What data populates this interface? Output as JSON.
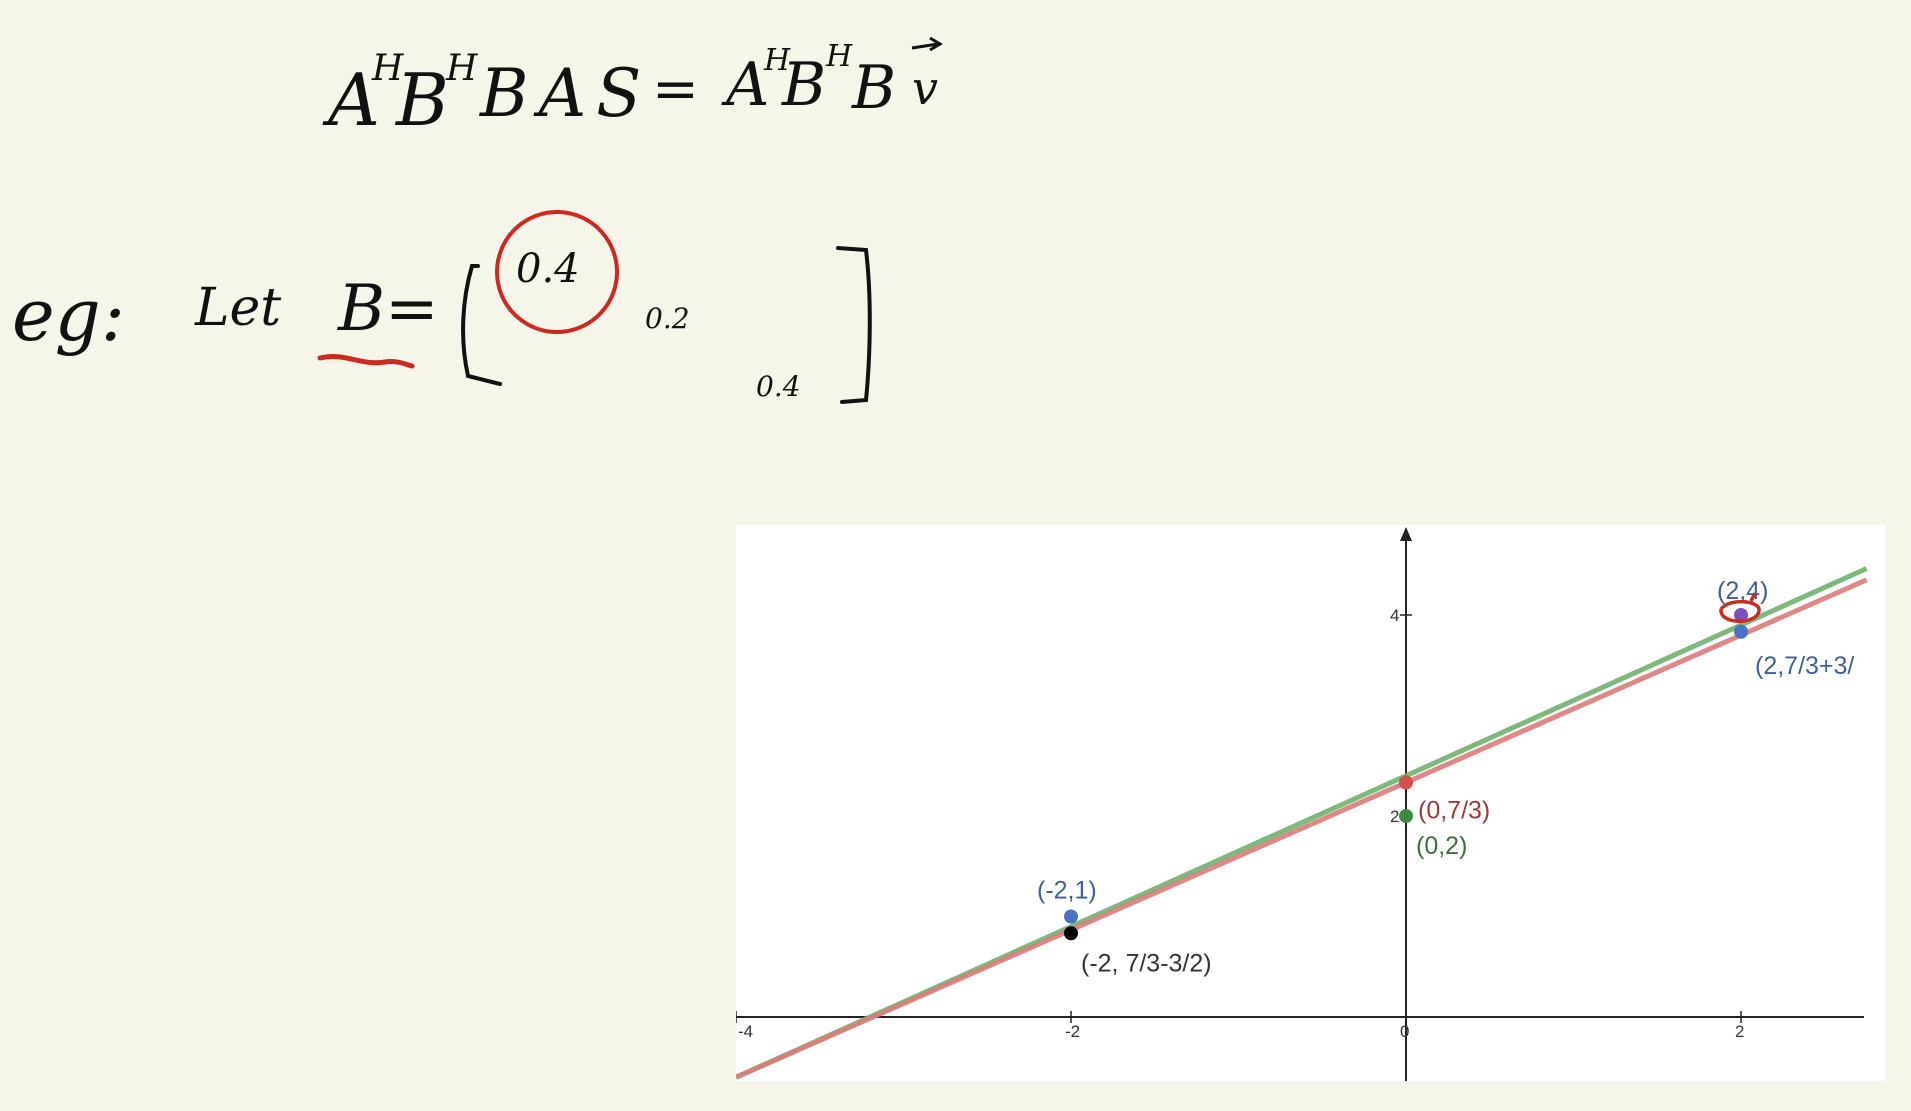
{
  "handwriting": {
    "equation_lhs": "A",
    "equation_lhs_sup1": "H",
    "equation_lhs_mid": "B",
    "equation_lhs_sup2": "H",
    "equation_lhs_tail": "BAS",
    "equals": "=",
    "equation_rhs": "A",
    "equation_rhs_sup1": "H",
    "equation_rhs_mid": "B",
    "equation_rhs_sup2": "H",
    "equation_rhs_tail": "B",
    "equation_rhs_vec": "v",
    "example_prefix": "eg:",
    "let_word": "Let",
    "matrix_name": "B=",
    "entry_11": "0.4",
    "entry_12": "0.2",
    "entry_22": "0.4"
  },
  "colors": {
    "ink": "#111111",
    "annotation_red": "#cc2a1e",
    "green_line": "#6fb06f",
    "red_line": "#dc7b7b",
    "blue_point": "#4b72c4",
    "green_point": "#3f8a3f",
    "red_point": "#d64f4f",
    "black_point": "#000000",
    "purple_point": "#7b4fbf",
    "blue_label": "#3f5f9c",
    "green_label": "#3f6f3f",
    "red_label": "#9a3a3a",
    "black_label": "#333333"
  },
  "chart_data": {
    "type": "scatter",
    "xlim": [
      -4,
      2.75
    ],
    "ylim": [
      -0.4,
      4.9
    ],
    "x_ticks": [
      -4,
      -2,
      0,
      2
    ],
    "x_tick_labels": [
      "-4",
      "-2",
      "0",
      "2"
    ],
    "y_ticks": [
      2,
      4
    ],
    "y_tick_labels": [
      "2",
      "4"
    ],
    "grid": false,
    "lines": [
      {
        "color_key": "green_line",
        "slope": 0.75,
        "intercept": 2.4
      },
      {
        "color_key": "red_line",
        "slope": 0.7333,
        "intercept": 2.3333
      }
    ],
    "points": [
      {
        "x": -2,
        "y": 1,
        "color_key": "blue_point",
        "label": "(-2,1)",
        "label_color_key": "blue_label"
      },
      {
        "x": -2,
        "y": 0.8333,
        "color_key": "black_point",
        "label": "(-2, 7/3-3/2)",
        "label_color_key": "black_label"
      },
      {
        "x": 0,
        "y": 2.3333,
        "color_key": "red_point",
        "label": "(0,7/3)",
        "label_color_key": "red_label"
      },
      {
        "x": 0,
        "y": 2,
        "color_key": "green_point",
        "label": "(0,2)",
        "label_color_key": "green_label"
      },
      {
        "x": 2,
        "y": 3.8333,
        "color_key": "blue_point",
        "label": "(2,7/3+3/",
        "label_color_key": "blue_label"
      },
      {
        "x": 2,
        "y": 4,
        "color_key": "purple_point",
        "label": "(2,4)",
        "label_color_key": "blue_label"
      }
    ]
  }
}
